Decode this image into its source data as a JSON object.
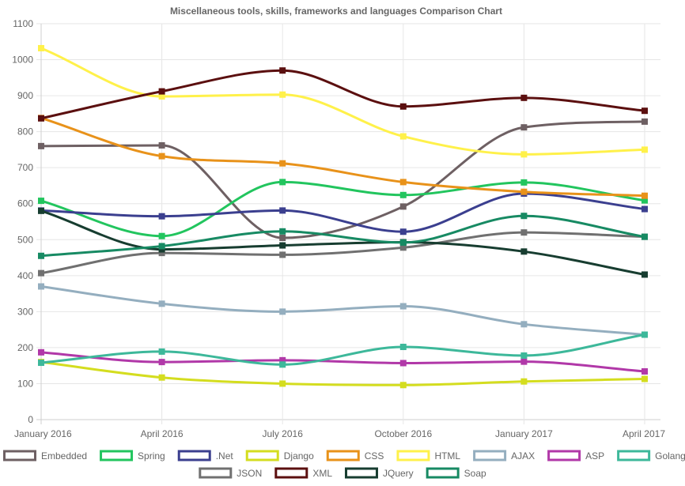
{
  "chart_data": {
    "type": "line",
    "title": "Miscellaneous tools, skills, frameworks and languages Comparison Chart",
    "categories": [
      "January 2016",
      "April 2016",
      "July 2016",
      "October 2016",
      "January 2017",
      "April 2017"
    ],
    "y_ticks": [
      "0",
      "100",
      "200",
      "300",
      "400",
      "500",
      "600",
      "700",
      "800",
      "900",
      "1000",
      "1100"
    ],
    "ylim": [
      0,
      1100
    ],
    "grid": true,
    "legend_position": "bottom",
    "series": [
      {
        "name": "Embedded",
        "color": "#6e6063",
        "values": [
          760,
          762,
          505,
          592,
          812,
          828
        ]
      },
      {
        "name": "Spring",
        "color": "#22c55e",
        "values": [
          608,
          510,
          660,
          624,
          659,
          609
        ]
      },
      {
        "name": ".Net",
        "color": "#3b3f8f",
        "values": [
          581,
          565,
          581,
          522,
          628,
          585
        ]
      },
      {
        "name": "Django",
        "color": "#d4dd1f",
        "values": [
          160,
          117,
          100,
          96,
          106,
          113
        ]
      },
      {
        "name": "CSS",
        "color": "#e8921a",
        "values": [
          838,
          732,
          712,
          660,
          633,
          622
        ]
      },
      {
        "name": "HTML",
        "color": "#fff14a",
        "values": [
          1032,
          898,
          903,
          787,
          737,
          750
        ]
      },
      {
        "name": "AJAX",
        "color": "#94aebf",
        "values": [
          370,
          322,
          300,
          315,
          265,
          236
        ]
      },
      {
        "name": "ASP",
        "color": "#b138a8",
        "values": [
          187,
          160,
          165,
          157,
          161,
          134
        ]
      },
      {
        "name": "Golang",
        "color": "#3db89a",
        "values": [
          158,
          189,
          153,
          202,
          178,
          236
        ]
      },
      {
        "name": "JSON",
        "color": "#707070",
        "values": [
          407,
          463,
          458,
          478,
          520,
          508
        ]
      },
      {
        "name": "XML",
        "color": "#5b0f0f",
        "values": [
          837,
          912,
          970,
          870,
          894,
          858
        ]
      },
      {
        "name": "JQuery",
        "color": "#173d30",
        "values": [
          580,
          473,
          484,
          493,
          467,
          403
        ]
      },
      {
        "name": "Soap",
        "color": "#178a63",
        "values": [
          455,
          482,
          523,
          492,
          566,
          508
        ]
      }
    ]
  }
}
